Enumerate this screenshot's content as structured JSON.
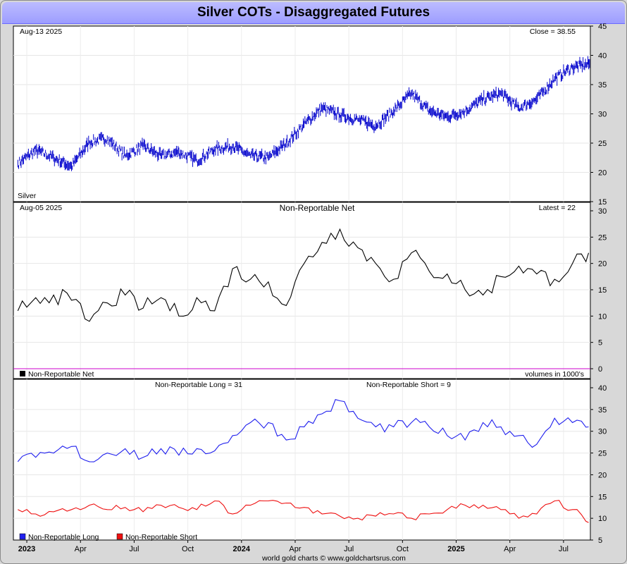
{
  "title": "Silver COTs - Disaggregated Futures",
  "footer": "world gold charts © www.goldchartsrus.com",
  "x_labels": [
    "2023",
    "Apr",
    "Jul",
    "Oct",
    "2024",
    "Apr",
    "Jul",
    "Oct",
    "2025",
    "Apr",
    "Jul"
  ],
  "x_label_bold": [
    true,
    false,
    false,
    false,
    true,
    false,
    false,
    false,
    true,
    false,
    false
  ],
  "colors": {
    "price": "#0000cc",
    "net": "#000000",
    "long": "#2020ee",
    "short": "#ee1010",
    "zero_line": "#cc00cc",
    "title_bar": "#a0a0ff"
  },
  "chart_data": [
    {
      "type": "line",
      "name": "silver-price",
      "date_label": "Aug-13  2025",
      "latest_label": "Close = 38.55",
      "series_label": "Silver",
      "ylim": [
        15,
        45
      ],
      "yticks": [
        "15",
        "20",
        "25",
        "30",
        "35",
        "40",
        "45"
      ],
      "grid": true,
      "x": [
        "2022-12",
        "2023-01",
        "2023-02",
        "2023-03",
        "2023-04",
        "2023-05",
        "2023-06",
        "2023-07",
        "2023-08",
        "2023-09",
        "2023-10",
        "2023-11",
        "2023-12",
        "2024-01",
        "2024-02",
        "2024-03",
        "2024-04",
        "2024-05",
        "2024-06",
        "2024-07",
        "2024-08",
        "2024-09",
        "2024-10",
        "2024-11",
        "2024-12",
        "2025-01",
        "2025-02",
        "2025-03",
        "2025-04",
        "2025-05",
        "2025-06",
        "2025-07",
        "2025-08"
      ],
      "values": [
        21.5,
        23.8,
        22.5,
        21.0,
        25.2,
        25.8,
        22.8,
        24.5,
        22.8,
        23.5,
        22.0,
        24.0,
        24.5,
        22.8,
        22.5,
        25.0,
        28.2,
        31.0,
        29.8,
        29.0,
        28.0,
        30.5,
        33.5,
        30.5,
        29.5,
        30.5,
        32.5,
        33.5,
        31.0,
        32.5,
        36.0,
        38.0,
        38.55
      ]
    },
    {
      "type": "line",
      "name": "non-reportable-net",
      "date_label": "Aug-05  2025",
      "panel_title": "Non-Reportable Net",
      "latest_label": "Latest = 22",
      "legend": "Non-Reportable Net",
      "units_label": "volumes in 1000's",
      "ylim": [
        0,
        30
      ],
      "yticks": [
        "0",
        "5",
        "10",
        "15",
        "20",
        "25",
        "30"
      ],
      "grid": true,
      "x": [
        "2022-12",
        "2023-01",
        "2023-02",
        "2023-03",
        "2023-04",
        "2023-05",
        "2023-06",
        "2023-07",
        "2023-08",
        "2023-09",
        "2023-10",
        "2023-11",
        "2023-12",
        "2024-01",
        "2024-02",
        "2024-03",
        "2024-04",
        "2024-05",
        "2024-06",
        "2024-07",
        "2024-08",
        "2024-09",
        "2024-10",
        "2024-11",
        "2024-12",
        "2025-01",
        "2025-02",
        "2025-03",
        "2025-04",
        "2025-05",
        "2025-06",
        "2025-07",
        "2025-08"
      ],
      "values": [
        11,
        13.5,
        14,
        13,
        9,
        12.5,
        14,
        11.5,
        13.5,
        10,
        13.5,
        11,
        19,
        17,
        16.5,
        12,
        20,
        24,
        26.5,
        23,
        20,
        17,
        22,
        18.5,
        18,
        15,
        14,
        17.5,
        19.5,
        18,
        17,
        20,
        22
      ]
    },
    {
      "type": "line",
      "name": "non-reportable-long-short",
      "long_label": "Non-Reportable Long = 31",
      "short_label": "Non-Reportable Short = 9",
      "ylim": [
        5,
        40
      ],
      "yticks": [
        "5",
        "10",
        "15",
        "20",
        "25",
        "30",
        "35",
        "40"
      ],
      "grid": true,
      "x": [
        "2022-12",
        "2023-01",
        "2023-02",
        "2023-03",
        "2023-04",
        "2023-05",
        "2023-06",
        "2023-07",
        "2023-08",
        "2023-09",
        "2023-10",
        "2023-11",
        "2023-12",
        "2024-01",
        "2024-02",
        "2024-03",
        "2024-04",
        "2024-05",
        "2024-06",
        "2024-07",
        "2024-08",
        "2024-09",
        "2024-10",
        "2024-11",
        "2024-12",
        "2025-01",
        "2025-02",
        "2025-03",
        "2025-04",
        "2025-05",
        "2025-06",
        "2025-07",
        "2025-08"
      ],
      "series": [
        {
          "name": "Non-Reportable Long",
          "values": [
            23,
            24,
            25,
            26.5,
            23,
            25,
            26,
            24,
            26,
            24.5,
            26,
            25.5,
            29,
            32,
            32,
            28,
            31,
            34,
            37,
            33,
            31,
            31,
            32,
            31,
            29,
            28,
            32,
            31,
            29,
            27,
            33,
            32,
            31
          ]
        },
        {
          "name": "Non-Reportable Short",
          "values": [
            12,
            11,
            11.5,
            12,
            13,
            12,
            12.5,
            11.5,
            13,
            12.5,
            12,
            14,
            11,
            13,
            14,
            13.5,
            12.5,
            11,
            10.5,
            10,
            10.5,
            11,
            10,
            11,
            12,
            13,
            13,
            12,
            10,
            11,
            14,
            12,
            9
          ]
        }
      ]
    }
  ]
}
